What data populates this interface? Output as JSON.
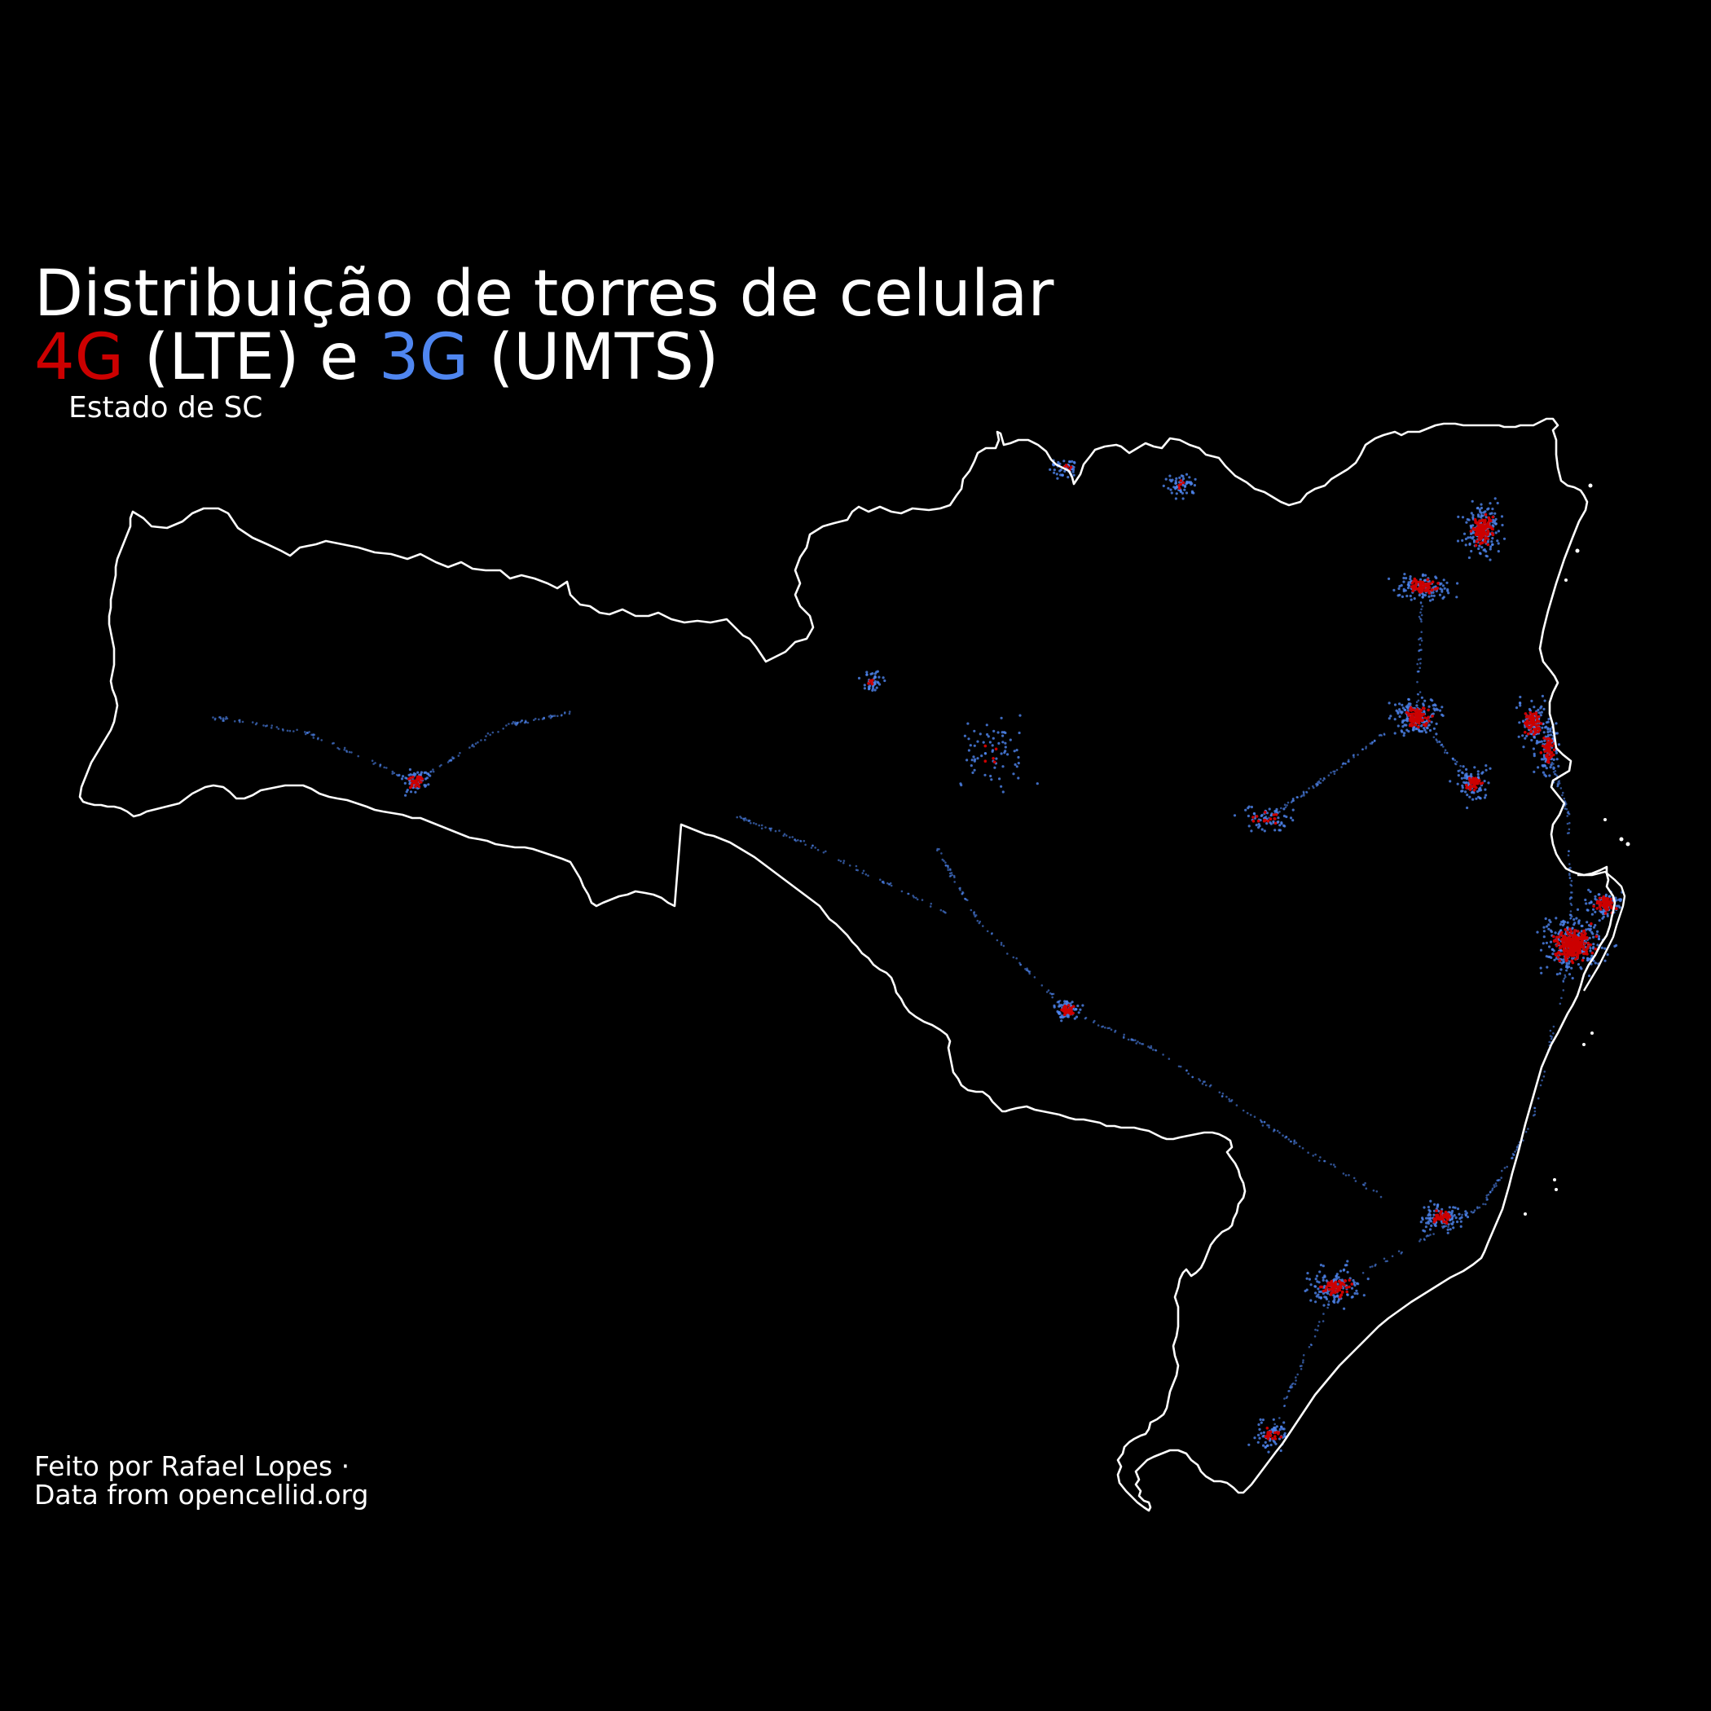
{
  "title": {
    "line1": "Distribuição de torres de celular",
    "line2": {
      "part_4g": "4G",
      "part_lte": " (LTE) e ",
      "part_3g": "3G",
      "part_umts": " (UMTS)"
    }
  },
  "subtitle": "Estado de SC",
  "caption": {
    "line1": "Feito por Rafael Lopes ·",
    "line2": "Data from opencellid.org"
  },
  "colors": {
    "background": "#000000",
    "border": "#ffffff",
    "lte_4g": "#cc0000",
    "umts_3g": "#4f86f0"
  },
  "map": {
    "region": "Santa Catarina",
    "layers": [
      "state-border",
      "3g-towers",
      "4g-towers"
    ]
  }
}
